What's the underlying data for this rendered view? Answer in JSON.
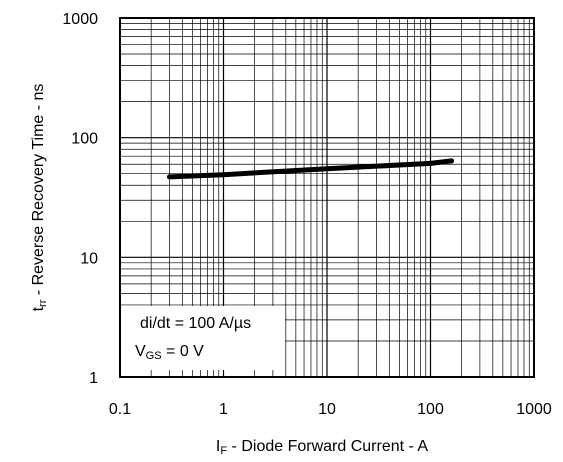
{
  "chart_data": {
    "type": "line",
    "xscale": "log",
    "yscale": "log",
    "xlim": [
      0.1,
      1000
    ],
    "ylim": [
      1,
      1000
    ],
    "grid": true,
    "x_ticks": [
      "0.1",
      "1",
      "10",
      "100",
      "1000"
    ],
    "y_ticks": [
      "1",
      "10",
      "100",
      "1000"
    ],
    "xlabel": {
      "main": "I",
      "sub": "F",
      "rest": " - Diode Forward Current - A"
    },
    "ylabel": {
      "main": "t",
      "sub": "rr",
      "rest": " - Reverse Recovery Time - ns"
    },
    "annotations": [
      {
        "text": "di/dt = 100 A/µs"
      },
      {
        "main": "V",
        "sub": "GS",
        "rest": " = 0 V"
      }
    ],
    "series": [
      {
        "color": "#000000",
        "x": [
          0.3,
          1,
          10,
          100,
          160
        ],
        "y": [
          47,
          49,
          55,
          61,
          64
        ]
      }
    ]
  }
}
